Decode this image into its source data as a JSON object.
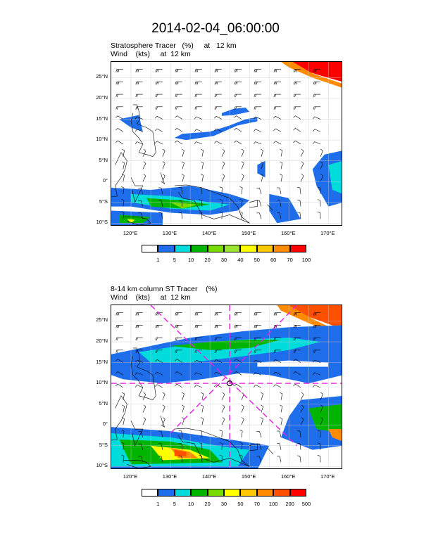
{
  "title": "2014-02-04_06:00:00",
  "panels": [
    {
      "id": "top",
      "title_line1": "Stratosphere Tracer   (%)     at   12 km",
      "title_line2": "Wind    (kts)     at  12 km",
      "lat_labels": [
        "25°N",
        "20°N",
        "15°N",
        "10°N",
        "5°N",
        "0°",
        "5°S",
        "10°S"
      ],
      "lon_labels": [
        "120°E",
        "130°E",
        "140°E",
        "150°E",
        "160°E",
        "170°E"
      ],
      "colorbar_colors": [
        "#ffffff",
        "#1e6eeb",
        "#00dcdc",
        "#00b400",
        "#78dc00",
        "#9be632",
        "#ffff00",
        "#ffc800",
        "#ff8c00",
        "#ff0000"
      ],
      "colorbar_labels": [
        "1",
        "5",
        "10",
        "20",
        "30",
        "40",
        "50",
        "60",
        "70",
        "100"
      ],
      "has_cross_section": false
    },
    {
      "id": "bottom",
      "title_line1": "8-14 km column ST Tracer    (%)",
      "title_line2": "Wind    (kts)     at  12 km",
      "lat_labels": [
        "25°N",
        "20°N",
        "15°N",
        "10°N",
        "5°N",
        "0°",
        "5°S",
        "10°S"
      ],
      "lon_labels": [
        "120°E",
        "130°E",
        "140°E",
        "150°E",
        "160°E",
        "170°E"
      ],
      "colorbar_colors": [
        "#ffffff",
        "#1e6eeb",
        "#00dcdc",
        "#00b400",
        "#78dc00",
        "#ffff00",
        "#ffc800",
        "#ff8c00",
        "#ff5000",
        "#ff0000"
      ],
      "colorbar_labels": [
        "1",
        "5",
        "10",
        "20",
        "30",
        "50",
        "70",
        "100",
        "200",
        "500"
      ],
      "has_cross_section": true,
      "cross_section_color": "#e61ee6"
    }
  ]
}
